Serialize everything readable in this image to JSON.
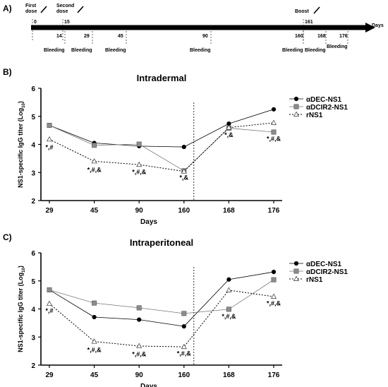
{
  "panels": {
    "a": "A)",
    "b": "B)",
    "c": "C)"
  },
  "timeline": {
    "days_label": "Days",
    "top_labels": [
      "First\ndose",
      "Second\ndose",
      "Boost"
    ],
    "top_days": [
      "0",
      "15",
      "161"
    ],
    "bleed_days": [
      "14",
      "29",
      "45",
      "90",
      "160",
      "168",
      "176"
    ],
    "bleed_label": "Bleeding"
  },
  "colors": {
    "aDEC": "#000000",
    "aDCIR2": "#8c8c8c",
    "rNS1": "#ffffff"
  },
  "chart_data": [
    {
      "type": "line",
      "title": "Intradermal",
      "xlabel": "Days",
      "ylabel": "NS1-specific IgG titer (Log10)",
      "ylabel_main": "NS1-specific IgG titer (Log",
      "ylabel_sub": "10",
      "ylabel_end": ")",
      "categories": [
        "29",
        "45",
        "90",
        "160",
        "168",
        "176"
      ],
      "ylim": [
        2,
        6
      ],
      "yticks": [
        "2",
        "3",
        "4",
        "5",
        "6"
      ],
      "boost_line_after": "160",
      "legend": [
        "αDEC-NS1",
        "αDCIR2-NS1",
        "rNS1"
      ],
      "series": [
        {
          "name": "αDEC-NS1",
          "values": [
            4.68,
            4.05,
            3.94,
            3.91,
            4.74,
            5.25
          ]
        },
        {
          "name": "αDCIR2-NS1",
          "values": [
            4.68,
            3.97,
            4.01,
            3.06,
            4.58,
            4.44
          ]
        },
        {
          "name": "rNS1",
          "values": [
            4.18,
            3.4,
            3.28,
            3.04,
            4.6,
            4.77
          ]
        }
      ],
      "annotations": [
        "*,#",
        "*,#,&",
        "*,#,&",
        "*,&",
        "*,&",
        "*,#,&"
      ],
      "annotation_at": [
        [
          0,
          3.82
        ],
        [
          1,
          3.02
        ],
        [
          2,
          2.94
        ],
        [
          3,
          2.74
        ],
        [
          4,
          4.26
        ],
        [
          5,
          4.12
        ]
      ]
    },
    {
      "type": "line",
      "title": "Intraperitoneal",
      "xlabel": "Days",
      "ylabel": "NS1-specific IgG titer (Log10)",
      "ylabel_main": "NS1-specific IgG titer (Log",
      "ylabel_sub": "10",
      "ylabel_end": ")",
      "categories": [
        "29",
        "45",
        "90",
        "160",
        "168",
        "176"
      ],
      "ylim": [
        2,
        6
      ],
      "yticks": [
        "2",
        "3",
        "4",
        "5",
        "6"
      ],
      "boost_line_after": "160",
      "legend": [
        "αDEC-NS1",
        "αDCIR2-NS1",
        "rNS1"
      ],
      "series": [
        {
          "name": "αDEC-NS1",
          "values": [
            4.68,
            3.71,
            3.62,
            3.38,
            5.05,
            5.32
          ]
        },
        {
          "name": "αDCIR2-NS1",
          "values": [
            4.68,
            4.21,
            4.04,
            3.84,
            3.99,
            5.04
          ]
        },
        {
          "name": "rNS1",
          "values": [
            4.19,
            2.84,
            2.68,
            2.65,
            4.67,
            4.44
          ]
        }
      ],
      "annotations": [
        "*,#",
        "*,#,&",
        "*,#,&",
        "*,#,&",
        "*,#,&",
        "*,#,&"
      ],
      "annotation_at": [
        [
          0,
          3.86
        ],
        [
          1,
          2.46
        ],
        [
          2,
          2.32
        ],
        [
          3,
          2.34
        ],
        [
          4,
          3.66
        ],
        [
          5,
          4.12
        ]
      ]
    }
  ]
}
